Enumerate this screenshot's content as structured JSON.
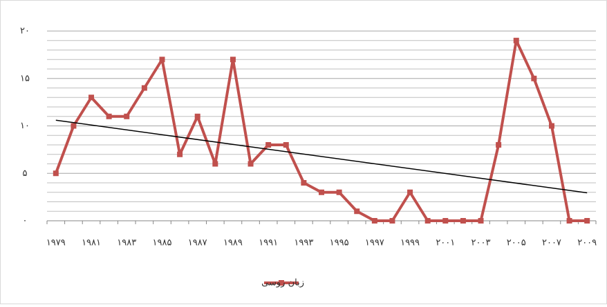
{
  "chart_data": {
    "type": "line",
    "categories": [
      "۱۹۷۹",
      null,
      "۱۹۸۱",
      null,
      "۱۹۸۳",
      null,
      "۱۹۸۵",
      null,
      "۱۹۸۷",
      null,
      "۱۹۸۹",
      null,
      "۱۹۹۱",
      null,
      "۱۹۹۳",
      null,
      "۱۹۹۵",
      null,
      "۱۹۹۷",
      null,
      "۱۹۹۹",
      null,
      "۲۰۰۱",
      null,
      "۲۰۰۳",
      null,
      "۲۰۰۵",
      null,
      "۲۰۰۷",
      null,
      "۲۰۰۹"
    ],
    "series": [
      {
        "name": "زبان روسی",
        "color": "#c0504d",
        "values": [
          5,
          10,
          13,
          11,
          11,
          14,
          17,
          7,
          11,
          6,
          17,
          6,
          8,
          8,
          4,
          3,
          3,
          1,
          0,
          0,
          3,
          0,
          0,
          0,
          0,
          8,
          19,
          15,
          10,
          0,
          0
        ]
      }
    ],
    "ylim": [
      0,
      20
    ],
    "yticks": [
      {
        "value": 0,
        "label": "۰"
      },
      {
        "value": 5,
        "label": "۵"
      },
      {
        "value": 10,
        "label": "۱۰"
      },
      {
        "value": 15,
        "label": "۱۵"
      },
      {
        "value": 20,
        "label": "۲۰"
      }
    ],
    "minor_yticks": [
      1,
      2,
      3,
      4,
      6,
      7,
      8,
      9,
      11,
      12,
      13,
      14,
      16,
      17,
      18,
      19
    ],
    "grid": true,
    "trendline": "linear",
    "trendline_color": "#000000",
    "legend": "bottom"
  }
}
